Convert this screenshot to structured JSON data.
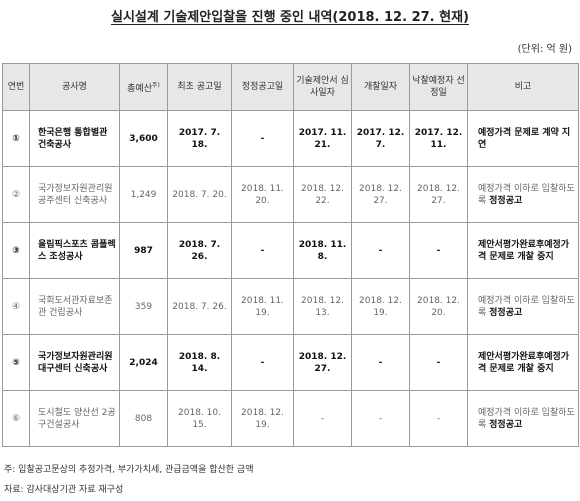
{
  "title": "실시설계 기술제안입찰을 진행 중인 내역(2018. 12. 27. 현재)",
  "unit": "(단위: 억 원)",
  "headers": {
    "no": "연번",
    "name": "공사명",
    "budget": "총예산",
    "budget_note": "주)",
    "first_notice": "최초 공고일",
    "corrected_notice": "정정공고일",
    "review_date": "기술제안서 심사일자",
    "opening_date": "개찰일자",
    "selection_date": "낙찰예정자 선정일",
    "remark": "비고"
  },
  "rows": [
    {
      "no": "①",
      "name": "한국은행 통합별관 건축공사",
      "budget": "3,600",
      "first_notice": "2017. 7. 18.",
      "corrected_notice": "-",
      "review_date": "2017. 11. 21.",
      "opening_date": "2017. 12. 7.",
      "selection_date": "2017. 12. 11.",
      "remark_plain": "예정가격 문제로 ",
      "remark_bold": "계약 지연"
    },
    {
      "no": "②",
      "name": "국가정보자원관리원 공주센터 신축공사",
      "budget": "1,249",
      "first_notice": "2018. 7. 20.",
      "corrected_notice": "2018. 11. 20.",
      "review_date": "2018. 12. 22.",
      "opening_date": "2018. 12. 27.",
      "selection_date": "2018. 12. 27.",
      "remark_plain": "예정가격 이하로 입찰하도록 ",
      "remark_bold": "정정공고"
    },
    {
      "no": "③",
      "name": "올림픽스포츠 콤플렉스 조성공사",
      "budget": "987",
      "first_notice": "2018. 7. 26.",
      "corrected_notice": "-",
      "review_date": "2018. 11. 8.",
      "opening_date": "-",
      "selection_date": "-",
      "remark_plain": "제안서평가완료후예정가격 문제로 ",
      "remark_bold": "개찰 중지"
    },
    {
      "no": "④",
      "name": "국회도서관자료보존관 건립공사",
      "budget": "359",
      "first_notice": "2018. 7. 26.",
      "corrected_notice": "2018. 11. 19.",
      "review_date": "2018. 12. 13.",
      "opening_date": "2018. 12. 19.",
      "selection_date": "2018. 12. 20.",
      "remark_plain": "예정가격 이하로 입찰하도록 ",
      "remark_bold": "정정공고"
    },
    {
      "no": "⑤",
      "name": "국가정보자원관리원 대구센터 신축공사",
      "budget": "2,024",
      "first_notice": "2018. 8. 14.",
      "corrected_notice": "-",
      "review_date": "2018. 12. 27.",
      "opening_date": "-",
      "selection_date": "-",
      "remark_plain": "제안서평가완료후예정가격 문제로 ",
      "remark_bold": "개찰 중지"
    },
    {
      "no": "⑥",
      "name": "도시철도 양산선 2공구건설공사",
      "budget": "808",
      "first_notice": "2018. 10. 15.",
      "corrected_notice": "2018. 12. 19.",
      "review_date": "-",
      "opening_date": "-",
      "selection_date": "-",
      "remark_plain": "예정가격 이하로 입찰하도록 ",
      "remark_bold": "정정공고"
    }
  ],
  "row_styles": [
    "bold",
    "light",
    "bold",
    "light",
    "bold",
    "light"
  ],
  "footnote": "주: 입찰공고문상의 추정가격, 부가가치세, 관급금액을 합산한 금액",
  "source": "자료: 감사대상기관 자료 재구성"
}
